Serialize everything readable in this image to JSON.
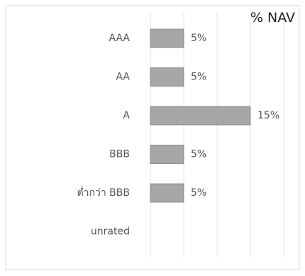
{
  "unit_label": "% NAV",
  "colors": {
    "bar_fill": "#a6a6a6",
    "bar_stroke": "#7f7f7f",
    "grid": "#e3e3e3",
    "frame": "#dadada",
    "category_text": "#555555",
    "value_text": "#555555"
  },
  "chart_data": {
    "type": "bar",
    "orientation": "horizontal",
    "categories": [
      "AAA",
      "AA",
      "A",
      "BBB",
      "ต่ำกว่า BBB",
      "unrated"
    ],
    "values": [
      5,
      5,
      15,
      5,
      5,
      null
    ],
    "value_labels": [
      "5%",
      "5%",
      "15%",
      "5%",
      "5%",
      ""
    ],
    "title": "",
    "xlabel": "",
    "ylabel": "",
    "xlim": [
      0,
      20
    ],
    "grid": true,
    "legend": "none"
  }
}
